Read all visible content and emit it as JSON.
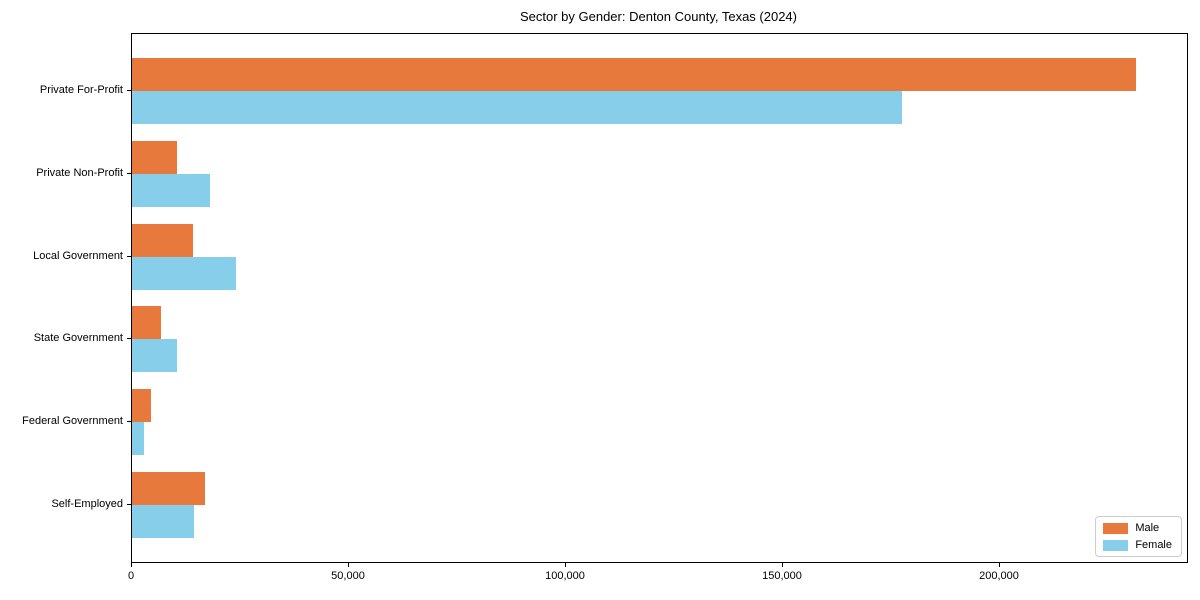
{
  "chart_data": {
    "type": "bar",
    "orientation": "horizontal",
    "title": "Sector by Gender: Denton County, Texas (2024)",
    "categories": [
      "Private For-Profit",
      "Private Non-Profit",
      "Local Government",
      "State Government",
      "Federal Government",
      "Self-Employed"
    ],
    "series": [
      {
        "name": "Male",
        "color": "#e8793c",
        "values": [
          231300,
          10400,
          14000,
          6700,
          4400,
          16900
        ]
      },
      {
        "name": "Female",
        "color": "#87ceeb",
        "values": [
          177400,
          18000,
          24000,
          10400,
          2800,
          14200
        ]
      }
    ],
    "xlabel": "",
    "ylabel": "",
    "xlim": [
      0,
      243000
    ],
    "xticks": {
      "values": [
        0,
        50000,
        100000,
        150000,
        200000
      ],
      "labels": [
        "0",
        "50,000",
        "100,000",
        "150,000",
        "200,000"
      ]
    },
    "grid": false,
    "legend_position": "lower right",
    "legend_entries": [
      "Male",
      "Female"
    ]
  }
}
